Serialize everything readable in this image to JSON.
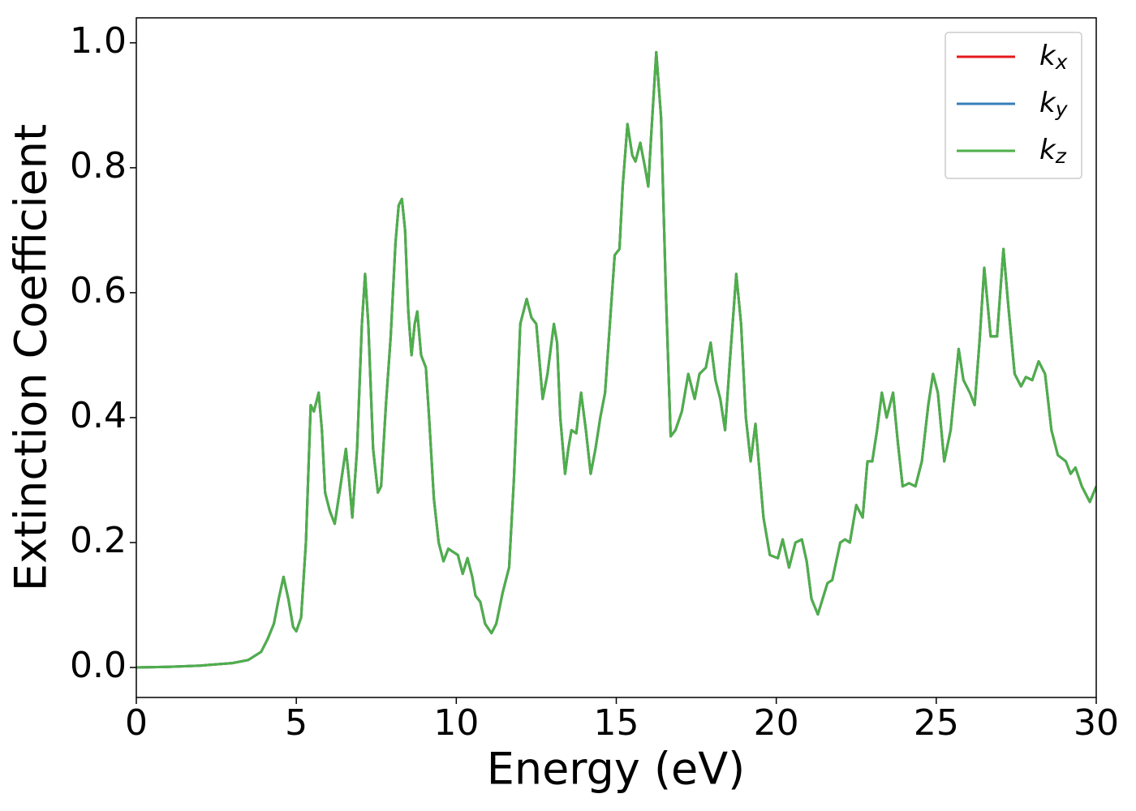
{
  "chart_data": {
    "type": "line",
    "x_label": "Energy (eV)",
    "y_label": "Extinction Coefficient",
    "xlim": [
      0,
      30
    ],
    "xticks": [
      0,
      5,
      10,
      15,
      20,
      25,
      30
    ],
    "ylim": [
      -0.048,
      1.04
    ],
    "yticks": [
      {
        "value": 0,
        "label": "0.0"
      },
      {
        "value": 0.2,
        "label": "0.2"
      },
      {
        "value": 0.4,
        "label": "0.4"
      },
      {
        "value": 0.6,
        "label": "0.6"
      },
      {
        "value": 0.8,
        "label": "0.8"
      },
      {
        "value": 1.0,
        "label": "1.0"
      }
    ],
    "grid": false,
    "legend": "upper right",
    "x": [
      0,
      1,
      2,
      3,
      3.5,
      3.9,
      4.1,
      4.3,
      4.45,
      4.6,
      4.75,
      4.9,
      5.0,
      5.15,
      5.3,
      5.45,
      5.55,
      5.7,
      5.8,
      5.9,
      6.05,
      6.2,
      6.35,
      6.55,
      6.65,
      6.75,
      6.9,
      7.05,
      7.15,
      7.25,
      7.4,
      7.55,
      7.65,
      7.8,
      7.95,
      8.1,
      8.2,
      8.3,
      8.4,
      8.5,
      8.6,
      8.7,
      8.78,
      8.9,
      9.05,
      9.15,
      9.3,
      9.45,
      9.6,
      9.75,
      9.9,
      10.05,
      10.2,
      10.35,
      10.5,
      10.6,
      10.75,
      10.9,
      11.1,
      11.25,
      11.45,
      11.65,
      11.8,
      12.0,
      12.2,
      12.35,
      12.5,
      12.6,
      12.7,
      12.85,
      13.05,
      13.15,
      13.25,
      13.4,
      13.5,
      13.6,
      13.75,
      13.9,
      14.05,
      14.2,
      14.35,
      14.5,
      14.65,
      14.8,
      14.95,
      15.1,
      15.2,
      15.35,
      15.5,
      15.6,
      15.75,
      15.9,
      16.0,
      16.1,
      16.25,
      16.4,
      16.55,
      16.7,
      16.85,
      17.05,
      17.25,
      17.45,
      17.6,
      17.8,
      17.95,
      18.1,
      18.25,
      18.4,
      18.55,
      18.75,
      18.9,
      19.05,
      19.2,
      19.35,
      19.5,
      19.6,
      19.8,
      20.05,
      20.2,
      20.4,
      20.6,
      20.8,
      20.95,
      21.1,
      21.3,
      21.45,
      21.6,
      21.75,
      22.0,
      22.15,
      22.3,
      22.5,
      22.7,
      22.85,
      23.0,
      23.15,
      23.3,
      23.45,
      23.65,
      23.8,
      23.95,
      24.15,
      24.35,
      24.55,
      24.75,
      24.9,
      25.05,
      25.25,
      25.45,
      25.7,
      25.85,
      26.05,
      26.2,
      26.35,
      26.5,
      26.7,
      26.9,
      27.1,
      27.25,
      27.45,
      27.65,
      27.8,
      28.0,
      28.2,
      28.4,
      28.6,
      28.8,
      29.05,
      29.2,
      29.35,
      29.55,
      29.8,
      30.0
    ],
    "series": [
      {
        "name": "kx",
        "color": "#e41a1c",
        "values": [
          0,
          0.001,
          0.003,
          0.007,
          0.012,
          0.025,
          0.045,
          0.07,
          0.11,
          0.145,
          0.11,
          0.065,
          0.058,
          0.08,
          0.2,
          0.42,
          0.41,
          0.44,
          0.38,
          0.28,
          0.25,
          0.23,
          0.28,
          0.35,
          0.3,
          0.24,
          0.35,
          0.55,
          0.63,
          0.55,
          0.35,
          0.28,
          0.29,
          0.42,
          0.53,
          0.68,
          0.74,
          0.75,
          0.7,
          0.57,
          0.5,
          0.55,
          0.57,
          0.5,
          0.48,
          0.4,
          0.27,
          0.2,
          0.17,
          0.19,
          0.185,
          0.18,
          0.15,
          0.175,
          0.145,
          0.115,
          0.105,
          0.07,
          0.055,
          0.07,
          0.12,
          0.16,
          0.3,
          0.55,
          0.59,
          0.56,
          0.55,
          0.49,
          0.43,
          0.47,
          0.55,
          0.52,
          0.4,
          0.31,
          0.35,
          0.38,
          0.375,
          0.44,
          0.38,
          0.31,
          0.35,
          0.4,
          0.44,
          0.55,
          0.66,
          0.67,
          0.77,
          0.87,
          0.82,
          0.81,
          0.84,
          0.8,
          0.77,
          0.86,
          0.985,
          0.88,
          0.6,
          0.37,
          0.38,
          0.41,
          0.47,
          0.43,
          0.47,
          0.48,
          0.52,
          0.46,
          0.43,
          0.38,
          0.49,
          0.63,
          0.55,
          0.4,
          0.33,
          0.39,
          0.3,
          0.24,
          0.18,
          0.175,
          0.205,
          0.16,
          0.2,
          0.205,
          0.17,
          0.11,
          0.085,
          0.11,
          0.135,
          0.14,
          0.2,
          0.205,
          0.2,
          0.26,
          0.24,
          0.33,
          0.33,
          0.38,
          0.44,
          0.4,
          0.44,
          0.36,
          0.29,
          0.295,
          0.29,
          0.33,
          0.42,
          0.47,
          0.44,
          0.33,
          0.38,
          0.51,
          0.46,
          0.44,
          0.42,
          0.52,
          0.64,
          0.53,
          0.53,
          0.67,
          0.58,
          0.47,
          0.45,
          0.465,
          0.46,
          0.49,
          0.47,
          0.38,
          0.34,
          0.33,
          0.31,
          0.32,
          0.29,
          0.265,
          0.29
        ]
      },
      {
        "name": "ky",
        "color": "#377eb8",
        "values": [
          0,
          0.001,
          0.003,
          0.007,
          0.012,
          0.025,
          0.045,
          0.07,
          0.11,
          0.145,
          0.11,
          0.065,
          0.058,
          0.08,
          0.2,
          0.42,
          0.41,
          0.44,
          0.38,
          0.28,
          0.25,
          0.23,
          0.28,
          0.35,
          0.3,
          0.24,
          0.35,
          0.55,
          0.63,
          0.55,
          0.35,
          0.28,
          0.29,
          0.42,
          0.53,
          0.68,
          0.74,
          0.75,
          0.7,
          0.57,
          0.5,
          0.55,
          0.57,
          0.5,
          0.48,
          0.4,
          0.27,
          0.2,
          0.17,
          0.19,
          0.185,
          0.18,
          0.15,
          0.175,
          0.145,
          0.115,
          0.105,
          0.07,
          0.055,
          0.07,
          0.12,
          0.16,
          0.3,
          0.55,
          0.59,
          0.56,
          0.55,
          0.49,
          0.43,
          0.47,
          0.55,
          0.52,
          0.4,
          0.31,
          0.35,
          0.38,
          0.375,
          0.44,
          0.38,
          0.31,
          0.35,
          0.4,
          0.44,
          0.55,
          0.66,
          0.67,
          0.77,
          0.87,
          0.82,
          0.81,
          0.84,
          0.8,
          0.77,
          0.86,
          0.985,
          0.88,
          0.6,
          0.37,
          0.38,
          0.41,
          0.47,
          0.43,
          0.47,
          0.48,
          0.52,
          0.46,
          0.43,
          0.38,
          0.49,
          0.63,
          0.55,
          0.4,
          0.33,
          0.39,
          0.3,
          0.24,
          0.18,
          0.175,
          0.205,
          0.16,
          0.2,
          0.205,
          0.17,
          0.11,
          0.085,
          0.11,
          0.135,
          0.14,
          0.2,
          0.205,
          0.2,
          0.26,
          0.24,
          0.33,
          0.33,
          0.38,
          0.44,
          0.4,
          0.44,
          0.36,
          0.29,
          0.295,
          0.29,
          0.33,
          0.42,
          0.47,
          0.44,
          0.33,
          0.38,
          0.51,
          0.46,
          0.44,
          0.42,
          0.52,
          0.64,
          0.53,
          0.53,
          0.67,
          0.58,
          0.47,
          0.45,
          0.465,
          0.46,
          0.49,
          0.47,
          0.38,
          0.34,
          0.33,
          0.31,
          0.32,
          0.29,
          0.265,
          0.29
        ]
      },
      {
        "name": "kz",
        "color": "#4daf4a",
        "values": [
          0,
          0.001,
          0.003,
          0.007,
          0.012,
          0.025,
          0.045,
          0.07,
          0.11,
          0.145,
          0.11,
          0.065,
          0.058,
          0.08,
          0.2,
          0.42,
          0.41,
          0.44,
          0.38,
          0.28,
          0.25,
          0.23,
          0.28,
          0.35,
          0.3,
          0.24,
          0.35,
          0.55,
          0.63,
          0.55,
          0.35,
          0.28,
          0.29,
          0.42,
          0.53,
          0.68,
          0.74,
          0.75,
          0.7,
          0.57,
          0.5,
          0.55,
          0.57,
          0.5,
          0.48,
          0.4,
          0.27,
          0.2,
          0.17,
          0.19,
          0.185,
          0.18,
          0.15,
          0.175,
          0.145,
          0.115,
          0.105,
          0.07,
          0.055,
          0.07,
          0.12,
          0.16,
          0.3,
          0.55,
          0.59,
          0.56,
          0.55,
          0.49,
          0.43,
          0.47,
          0.55,
          0.52,
          0.4,
          0.31,
          0.35,
          0.38,
          0.375,
          0.44,
          0.38,
          0.31,
          0.35,
          0.4,
          0.44,
          0.55,
          0.66,
          0.67,
          0.77,
          0.87,
          0.82,
          0.81,
          0.84,
          0.8,
          0.77,
          0.86,
          0.985,
          0.88,
          0.6,
          0.37,
          0.38,
          0.41,
          0.47,
          0.43,
          0.47,
          0.48,
          0.52,
          0.46,
          0.43,
          0.38,
          0.49,
          0.63,
          0.55,
          0.4,
          0.33,
          0.39,
          0.3,
          0.24,
          0.18,
          0.175,
          0.205,
          0.16,
          0.2,
          0.205,
          0.17,
          0.11,
          0.085,
          0.11,
          0.135,
          0.14,
          0.2,
          0.205,
          0.2,
          0.26,
          0.24,
          0.33,
          0.33,
          0.38,
          0.44,
          0.4,
          0.44,
          0.36,
          0.29,
          0.295,
          0.29,
          0.33,
          0.42,
          0.47,
          0.44,
          0.33,
          0.38,
          0.51,
          0.46,
          0.44,
          0.42,
          0.52,
          0.64,
          0.53,
          0.53,
          0.67,
          0.58,
          0.47,
          0.45,
          0.465,
          0.46,
          0.49,
          0.47,
          0.38,
          0.34,
          0.33,
          0.31,
          0.32,
          0.29,
          0.265,
          0.29
        ]
      }
    ]
  }
}
